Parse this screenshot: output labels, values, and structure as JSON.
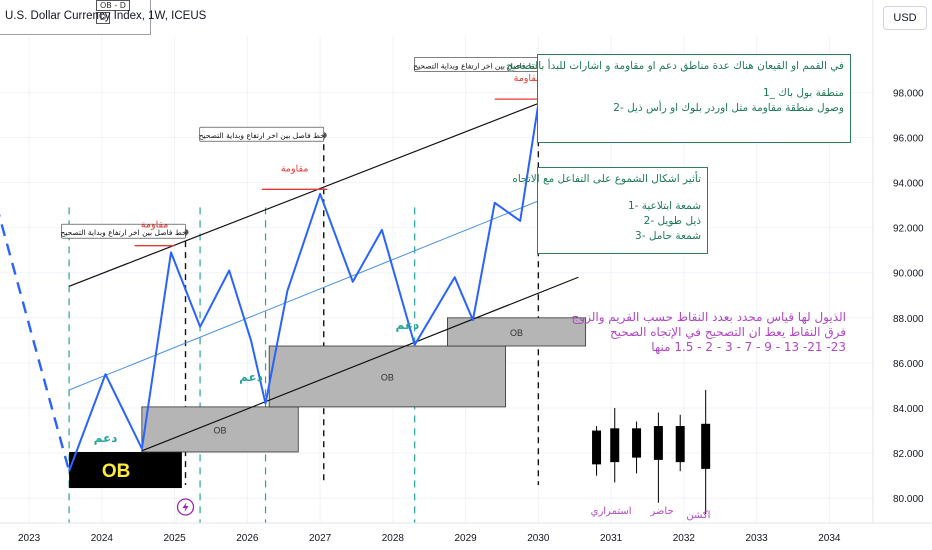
{
  "header": {
    "symbol_title": "U.S. Dollar Currency Index, 1W, ICEUS",
    "badge_a": "OB - D",
    "badge_b": "D",
    "currency_button": "USD"
  },
  "colors": {
    "price_line": "#2962ff",
    "channel": "#111111",
    "midline": "#4a90e2",
    "ob_fill": "#b5b5b5",
    "ob_black": "#000000",
    "ob_black_text": "#ffeb3b",
    "support_text": "#26a69a",
    "resistance_text": "#e53935",
    "note_text": "#1f7a55",
    "wick_note": "#b048c4"
  },
  "annotations": {
    "separator_label": "خط فاصل بين اخر ارتفاع وبداية التصحيح",
    "resistance": "مقاومة",
    "support": "دعم",
    "ob": "OB",
    "note1": {
      "title": "في القمم او القيعان هناك عدة مناطق دعم او مقاومة  و  اشارات للبدأ بالتصحيح",
      "item1": "منطقة بول باك _1",
      "item2": "وصول منطقة مقاومة مثل اوردر بلوك او رأس ذيل  -2"
    },
    "note2": {
      "title": "تأثير اشكال الشموع على التفاعل مع الاتجاه",
      "item1": "شمعة ابتلاعية -1",
      "item2": "ذيل طويل -2",
      "item3": "شمعة حامل -3"
    },
    "wick_note": {
      "line1": "الذيول لها قياس محدد بعدد النقاط حسب الفريم والزوج",
      "line2": "فرق النقاط يعط ان التصحيح في الإتجاه الصحيح",
      "line3": "23- 21- 13 - 9 - 7 - 3 - 2 - 1.5 منها"
    },
    "candle_labels": [
      "استمراري",
      "حاضر",
      "اكشن"
    ]
  },
  "chart_data": {
    "type": "line",
    "x_axis": {
      "ticks": [
        "2023",
        "2024",
        "2025",
        "2026",
        "2027",
        "2028",
        "2029",
        "2030",
        "2031",
        "2032",
        "2033",
        "2034"
      ],
      "range": [
        2022.6,
        2034.6
      ]
    },
    "y_axis": {
      "ticks": [
        "80.000",
        "82.000",
        "84.000",
        "86.000",
        "88.000",
        "90.000",
        "92.000",
        "94.000",
        "96.000",
        "98.000"
      ],
      "range": [
        78.9,
        100.5
      ]
    },
    "series": [
      {
        "style": "solid",
        "x": [
          2023.55,
          2024.05,
          2024.55,
          2024.95,
          2025.35,
          2025.75,
          2026.05,
          2026.25,
          2026.55,
          2027.0,
          2027.45,
          2027.85,
          2028.3,
          2028.85,
          2029.1,
          2029.4,
          2029.75,
          2030.0
        ],
        "y": [
          81.2,
          85.5,
          82.2,
          90.9,
          87.6,
          90.1,
          87.0,
          84.2,
          89.2,
          93.5,
          89.6,
          91.9,
          86.8,
          89.8,
          87.9,
          93.1,
          92.3,
          97.5
        ]
      },
      {
        "style": "dashed",
        "x": [
          2022.55,
          2023.55
        ],
        "y": [
          93.0,
          81.2
        ]
      }
    ],
    "channel": {
      "upper": {
        "x": [
          2023.55,
          2030.55
        ],
        "y": [
          89.4,
          98.2
        ]
      },
      "middle": {
        "x": [
          2023.55,
          2030.55
        ],
        "y": [
          84.8,
          93.9
        ]
      },
      "lower": {
        "x": [
          2024.55,
          2030.55
        ],
        "y": [
          82.1,
          89.8
        ]
      }
    },
    "order_blocks": [
      {
        "x0": 2023.55,
        "x1": 2025.1,
        "y0": 80.45,
        "y1": 82.05,
        "label": "OB",
        "style": "black"
      },
      {
        "x0": 2024.55,
        "x1": 2026.7,
        "y0": 82.05,
        "y1": 84.05,
        "label": "OB",
        "style": "gray"
      },
      {
        "x0": 2026.3,
        "x1": 2029.55,
        "y0": 84.05,
        "y1": 86.75,
        "label": "OB",
        "style": "gray"
      },
      {
        "x0": 2028.75,
        "x1": 2030.65,
        "y0": 86.75,
        "y1": 88.0,
        "label": "OB",
        "style": "gray"
      }
    ],
    "separators": [
      {
        "x": 2025.15,
        "y_top": 91.8
      },
      {
        "x": 2027.05,
        "y_top": 96.1
      },
      {
        "x": 2030.0,
        "y_top": 99.2
      }
    ],
    "resistance_marks": [
      {
        "x0": 2024.45,
        "x1": 2025.0,
        "y": 91.2,
        "label_y": 92.0
      },
      {
        "x0": 2026.2,
        "x1": 2027.1,
        "y": 93.7,
        "label_y": 94.5
      },
      {
        "x0": 2029.4,
        "x1": 2030.3,
        "y": 97.7,
        "label_y": 98.5
      }
    ],
    "support_marks": [
      {
        "x": 2024.05,
        "y": 82.5
      },
      {
        "x": 2026.05,
        "y": 85.2
      },
      {
        "x": 2028.2,
        "y": 87.5
      }
    ],
    "green_dashed_verticals": [
      2023.55,
      2025.35,
      2026.25,
      2028.3
    ],
    "demo_candles": [
      {
        "x": 2030.8,
        "o": 83.0,
        "h": 83.2,
        "l": 81.0,
        "c": 81.5
      },
      {
        "x": 2031.05,
        "o": 81.6,
        "h": 84.0,
        "l": 80.7,
        "c": 83.1
      },
      {
        "x": 2031.35,
        "o": 83.1,
        "h": 83.4,
        "l": 81.1,
        "c": 81.8
      },
      {
        "x": 2031.65,
        "o": 81.7,
        "h": 83.8,
        "l": 79.8,
        "c": 83.2
      },
      {
        "x": 2031.95,
        "o": 83.2,
        "h": 83.7,
        "l": 81.2,
        "c": 81.6
      },
      {
        "x": 2032.3,
        "o": 81.3,
        "h": 84.8,
        "l": 79.3,
        "c": 83.3
      }
    ]
  }
}
